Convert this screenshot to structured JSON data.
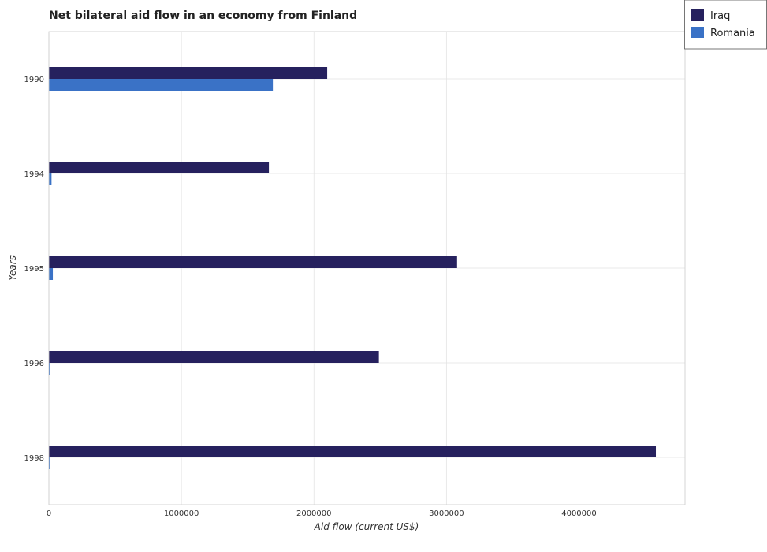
{
  "chart_data": {
    "type": "bar",
    "orientation": "horizontal",
    "title": "Net bilateral aid flow in an economy from Finland",
    "xlabel": "Aid flow (current US$)",
    "ylabel": "Years",
    "categories": [
      "1990",
      "1994",
      "1995",
      "1996",
      "1998"
    ],
    "series": [
      {
        "name": "Iraq",
        "color": "#26215e",
        "values": [
          2100000,
          1660000,
          3080000,
          2490000,
          4580000
        ]
      },
      {
        "name": "Romania",
        "color": "#3a72c6",
        "values": [
          1690000,
          20000,
          30000,
          10000,
          10000
        ]
      }
    ],
    "xlim": [
      0,
      4800000
    ],
    "xticks": [
      0,
      1000000,
      2000000,
      3000000,
      4000000
    ],
    "xtick_labels": [
      "0",
      "1000000",
      "2000000",
      "3000000",
      "4000000"
    ],
    "grid": true,
    "legend_position": "top-right"
  }
}
